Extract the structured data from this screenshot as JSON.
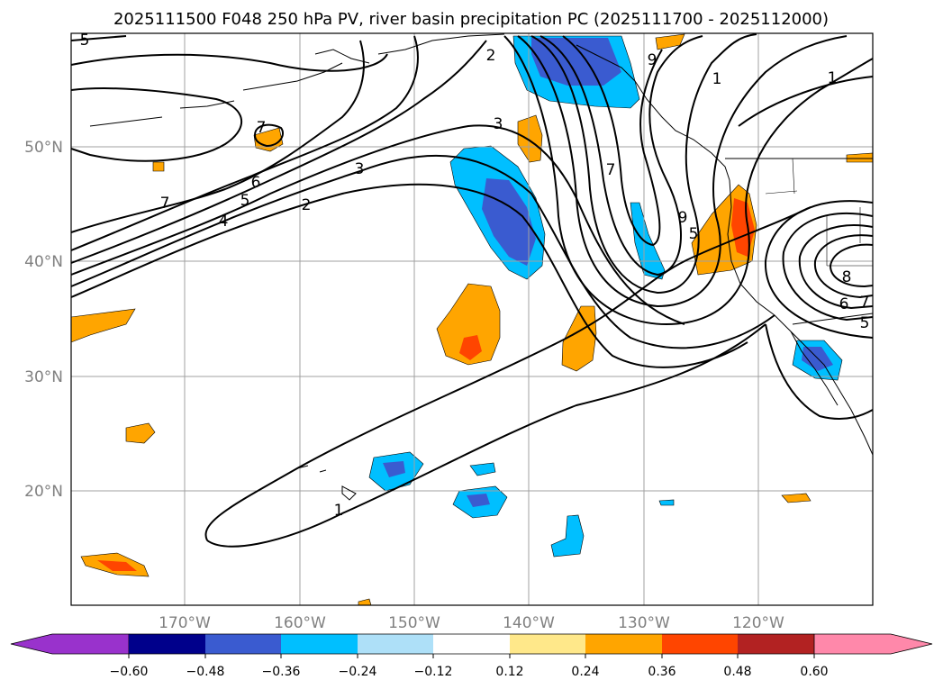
{
  "title": "2025111500 F048 250 hPa PV, river basin precipitation PC (2025111700 - 2025112000)",
  "map": {
    "lat_labels": [
      "50°N",
      "40°N",
      "30°N",
      "20°N"
    ],
    "lon_labels": [
      "170°W",
      "160°W",
      "150°W",
      "140°W",
      "130°W",
      "120°W"
    ],
    "contour_labels": [
      "5",
      "2",
      "9",
      "1",
      "1",
      "7",
      "3",
      "6",
      "7",
      "3",
      "5",
      "4",
      "2",
      "7",
      "9",
      "5",
      "8",
      "6",
      "7",
      "5",
      "1"
    ]
  },
  "colorbar": {
    "ticks": [
      "−0.60",
      "−0.48",
      "−0.36",
      "−0.24",
      "−0.12",
      "0.12",
      "0.24",
      "0.36",
      "0.48",
      "0.60"
    ],
    "colors": [
      "#9932cc",
      "#00008b",
      "#3a5bd0",
      "#00bfff",
      "#aee0f8",
      "#ffffff",
      "#ffe88a",
      "#ffa500",
      "#ff4500",
      "#b22222",
      "#ff88aa"
    ]
  },
  "colors": {
    "contour": "#000000",
    "coast": "#000000",
    "grid": "#a0a0a0",
    "tick_label": "#808080"
  }
}
